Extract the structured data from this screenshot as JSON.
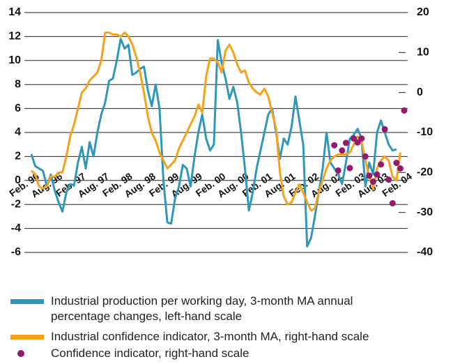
{
  "chart_data": {
    "type": "line",
    "categories": [
      "Feb. 96",
      null,
      null,
      null,
      null,
      null,
      "Aug. 96",
      null,
      null,
      null,
      null,
      null,
      "Feb. 97",
      null,
      null,
      null,
      null,
      null,
      "Aug. 97",
      null,
      null,
      null,
      null,
      null,
      "Feb. 98",
      null,
      null,
      null,
      null,
      null,
      "Aug. 98",
      null,
      null,
      null,
      null,
      null,
      "Feb. 99",
      null,
      null,
      null,
      null,
      null,
      "Aug. 99",
      null,
      null,
      null,
      null,
      null,
      "Feb. 00",
      null,
      null,
      null,
      null,
      null,
      "Aug. 00",
      null,
      null,
      null,
      null,
      null,
      "Feb. 01",
      null,
      null,
      null,
      null,
      null,
      "Aug. 01",
      null,
      null,
      null,
      null,
      null,
      "Feb. 02",
      null,
      null,
      null,
      null,
      null,
      "Aug. 02",
      null,
      null,
      null,
      null,
      null,
      "Feb. 03",
      null,
      null,
      null,
      null,
      null,
      "Aug. 03",
      null,
      null,
      null,
      null,
      null,
      "Feb. 04"
    ],
    "series": [
      {
        "name": "Industrial production per working day, 3-month MA annual percentage changes, left-hand scale",
        "color": "#2f97ba",
        "axis": "y",
        "type": "line",
        "values": [
          2.2,
          1.2,
          1,
          0.8,
          -0.5,
          0.5,
          -0.8,
          -1.8,
          -2.6,
          -1,
          -0.3,
          -0.4,
          1.5,
          2.8,
          1,
          3.2,
          2,
          4,
          5.5,
          6.5,
          8.3,
          8.5,
          10,
          11.8,
          11,
          11.3,
          8.8,
          9,
          9.3,
          9.5,
          7.5,
          6.2,
          8,
          6,
          0,
          -3.5,
          -3.6,
          -1.5,
          -0.5,
          1.3,
          1,
          -0.5,
          2,
          4,
          5.5,
          3.5,
          2.5,
          3,
          11.7,
          9.8,
          8.5,
          6.8,
          7.8,
          6.5,
          4,
          1,
          -2.5,
          -1,
          1,
          2.5,
          4,
          5.5,
          6,
          4,
          1.8,
          3.5,
          3,
          4.5,
          7,
          5,
          3,
          -5.5,
          -4.8,
          -3,
          -1,
          1,
          4,
          1.5,
          1,
          0.5,
          -0.3,
          1.5,
          3.5,
          3.8,
          4.3,
          3.5,
          -0.5,
          1.5,
          0.5,
          4,
          5,
          4,
          3,
          2.5,
          2.6,
          null,
          null
        ]
      },
      {
        "name": "Industrial confidence indicator, 3-month MA, right-hand scale",
        "color": "#f7a11a",
        "axis": "y2",
        "type": "line",
        "values": [
          -19.5,
          -20.5,
          -23.5,
          -24,
          -23.5,
          -21,
          -21,
          -20,
          -20,
          -16,
          -11,
          -8,
          -4,
          0,
          1,
          3,
          4,
          5,
          8,
          15,
          15,
          14.5,
          14.5,
          14,
          15,
          14,
          12,
          9,
          5,
          0,
          -6,
          -10,
          -12,
          -15,
          -17,
          -19,
          -18,
          -17,
          -14,
          -12,
          -10,
          -8,
          -6,
          -3,
          -5,
          4,
          8.5,
          8.5,
          7.5,
          5,
          10.5,
          12,
          10,
          7,
          5,
          5.5,
          2.5,
          1,
          0,
          -0.5,
          1,
          -1,
          -5,
          -9,
          -20,
          -26,
          -28,
          -27.5,
          -25,
          -23,
          -25,
          -27.5,
          -29.5,
          -29,
          -25,
          -22,
          -19,
          -17,
          -16,
          -15.5,
          -15.5,
          -15.5,
          -15,
          -13,
          -11,
          -12,
          -17,
          -21,
          -24,
          -19,
          -17,
          -16,
          -17,
          -21,
          -22,
          -15,
          null
        ]
      },
      {
        "name": "Confidence indicator, right-hand scale",
        "color": "#951a6c",
        "axis": "y2",
        "type": "scatter",
        "values": [
          null,
          null,
          null,
          null,
          null,
          null,
          null,
          null,
          null,
          null,
          null,
          null,
          null,
          null,
          null,
          null,
          null,
          null,
          null,
          null,
          null,
          null,
          null,
          null,
          null,
          null,
          null,
          null,
          null,
          null,
          null,
          null,
          null,
          null,
          null,
          null,
          null,
          null,
          null,
          null,
          null,
          null,
          null,
          null,
          null,
          null,
          null,
          null,
          null,
          null,
          null,
          null,
          null,
          null,
          null,
          null,
          null,
          null,
          null,
          null,
          null,
          null,
          null,
          null,
          null,
          null,
          null,
          null,
          null,
          null,
          null,
          null,
          null,
          null,
          null,
          null,
          null,
          null,
          -13.2,
          -19.5,
          -14.5,
          -12.6,
          -18.9,
          -11.5,
          -12.5,
          -11.5,
          -16,
          -20.8,
          -22.3,
          -20.5,
          -18,
          -9.2,
          -21.8,
          -27.7,
          -17.6,
          -19,
          -4.5
        ]
      }
    ],
    "ylim": [
      -6,
      14
    ],
    "yticks": [
      -6,
      -4,
      -2,
      0,
      2,
      4,
      6,
      8,
      10,
      12,
      14
    ],
    "y2lim": [
      -40,
      20
    ],
    "y2ticks": [
      -40,
      -30,
      -20,
      -10,
      0,
      10,
      20
    ],
    "grid": true
  }
}
